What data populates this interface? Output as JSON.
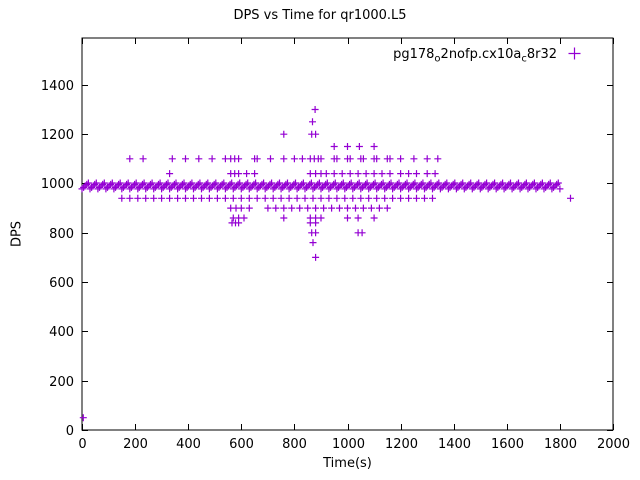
{
  "chart_data": {
    "type": "scatter",
    "title": "DPS vs Time for qr1000.L5",
    "xlabel": "Time(s)",
    "ylabel": "DPS",
    "xlim": [
      0,
      2000
    ],
    "ylim": [
      0,
      1590
    ],
    "xticks": [
      0,
      200,
      400,
      600,
      800,
      1000,
      1200,
      1400,
      1600,
      1800,
      2000
    ],
    "yticks": [
      0,
      200,
      400,
      600,
      800,
      1000,
      1200,
      1400
    ],
    "grid": false,
    "marker": "plus",
    "color": "#9400d3",
    "legend": {
      "label": "pg178_o2nofp.cx10a_c8r32",
      "position": "top-right",
      "parts": [
        {
          "t": "pg178",
          "sub": false
        },
        {
          "t": "o",
          "sub": true
        },
        {
          "t": "2nofp.cx10a",
          "sub": false
        },
        {
          "t": "c",
          "sub": true
        },
        {
          "t": "8r32",
          "sub": false
        }
      ]
    },
    "series": [
      {
        "name": "pg178_o2nofp.cx10a_c8r32",
        "band": {
          "x_start": 0,
          "x_end": 1800,
          "x_step": 6,
          "y_center": 990,
          "y_offsets": [
            -12,
            -6,
            0,
            6,
            12
          ]
        },
        "levels": [
          {
            "y": 1300,
            "xs": [
              878
            ]
          },
          {
            "y": 1250,
            "xs": [
              868
            ]
          },
          {
            "y": 1200,
            "xs": [
              760,
              865,
              880
            ]
          },
          {
            "y": 1150,
            "xs": [
              950,
              1000,
              1045,
              1100
            ]
          },
          {
            "y": 1100,
            "xs": [
              180,
              230,
              340,
              390,
              440,
              490,
              540,
              560,
              575,
              590,
              650,
              660,
              710,
              760,
              800,
              830,
              860,
              875,
              890,
              900,
              950,
              960,
              1000,
              1010,
              1050,
              1060,
              1100,
              1110,
              1150,
              1160,
              1200,
              1250,
              1300,
              1340
            ]
          },
          {
            "y": 1040,
            "xs": [
              330,
              560,
              575,
              590,
              620,
              650,
              860,
              880,
              900,
              920,
              950,
              980,
              1010,
              1040,
              1070,
              1100,
              1130,
              1160,
              1200,
              1230,
              1260,
              1300,
              1330
            ]
          },
          {
            "y": 940,
            "xs": [
              150,
              180,
              210,
              240,
              270,
              300,
              330,
              360,
              390,
              420,
              450,
              480,
              510,
              540,
              570,
              600,
              630,
              660,
              690,
              720,
              750,
              780,
              810,
              840,
              870,
              900,
              930,
              960,
              990,
              1020,
              1050,
              1080,
              1110,
              1140,
              1170,
              1200,
              1230,
              1260,
              1290,
              1320,
              1840
            ]
          },
          {
            "y": 900,
            "xs": [
              560,
              580,
              600,
              630,
              700,
              730,
              760,
              790,
              820,
              850,
              880,
              910,
              940,
              970,
              1000,
              1030,
              1060,
              1090,
              1120,
              1150
            ]
          },
          {
            "y": 860,
            "xs": [
              570,
              590,
              610,
              760,
              860,
              880,
              900,
              1000,
              1040,
              1100
            ]
          },
          {
            "y": 840,
            "xs": [
              565,
              578,
              590,
              860,
              880
            ]
          },
          {
            "y": 800,
            "xs": [
              865,
              880,
              1040,
              1055
            ]
          },
          {
            "y": 760,
            "xs": [
              870
            ]
          },
          {
            "y": 700,
            "xs": [
              880
            ]
          }
        ],
        "points": [
          [
            5,
            50
          ]
        ]
      }
    ]
  }
}
